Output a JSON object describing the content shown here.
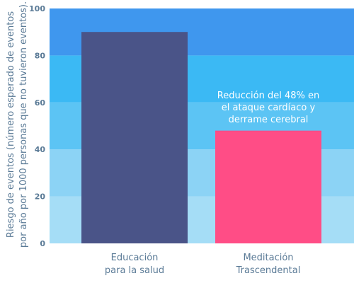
{
  "chart_data": {
    "type": "bar",
    "title": "",
    "ylabel_lines": [
      "Riesgo de eventos (número esperado de eventos",
      "por año por 1000 personas que no tuvieron eventos)."
    ],
    "xlabel": "",
    "ylim": [
      0,
      100
    ],
    "yticks": [
      "0",
      "20",
      "40",
      "60",
      "80",
      "100"
    ],
    "categories": [
      [
        "Educación",
        "para la salud"
      ],
      [
        "Meditación",
        "Trascendental"
      ]
    ],
    "values": [
      90,
      48
    ],
    "bar_colors": [
      "#4a5488",
      "#ff4d86"
    ],
    "background_bands": [
      {
        "from": 0,
        "to": 20,
        "color": "#a5ddf6"
      },
      {
        "from": 20,
        "to": 40,
        "color": "#8cd3f5"
      },
      {
        "from": 40,
        "to": 60,
        "color": "#5cc4f4"
      },
      {
        "from": 60,
        "to": 80,
        "color": "#3bb9f4"
      },
      {
        "from": 80,
        "to": 100,
        "color": "#3f97ee"
      }
    ],
    "annotation_lines": [
      "Reducción del 48% en",
      "el ataque cardíaco y",
      "derrame cerebral"
    ],
    "annotation_category_index": 1,
    "grid": false,
    "legend": "none"
  }
}
